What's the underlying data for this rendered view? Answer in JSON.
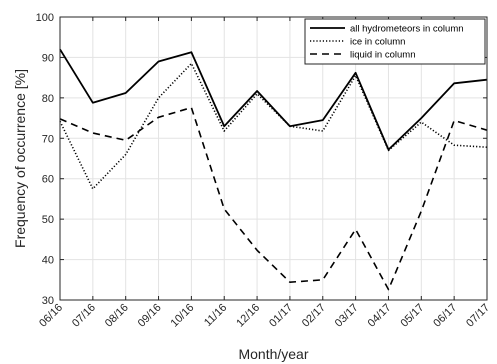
{
  "chart_data": {
    "type": "line",
    "title": "",
    "xlabel": "Month/year",
    "ylabel": "Frequency of occurrence [%]",
    "categories": [
      "06/16",
      "07/16",
      "08/16",
      "09/16",
      "10/16",
      "11/16",
      "12/16",
      "01/17",
      "02/17",
      "03/17",
      "04/17",
      "05/17",
      "06/17",
      "07/17"
    ],
    "ylim": [
      30,
      100
    ],
    "yticks": [
      30,
      40,
      50,
      60,
      70,
      80,
      90,
      100
    ],
    "grid": true,
    "legend_position": "top-right",
    "series": [
      {
        "name": "all hydrometeors in column",
        "style": "solid",
        "color": "#000000",
        "values": [
          92.0,
          78.8,
          81.2,
          89.0,
          91.3,
          73.0,
          81.7,
          73.0,
          74.5,
          86.2,
          67.2,
          75.0,
          83.6,
          84.5
        ]
      },
      {
        "name": "ice in column",
        "style": "dotted",
        "color": "#000000",
        "values": [
          74.2,
          57.5,
          66.0,
          80.0,
          88.5,
          71.8,
          81.0,
          73.0,
          71.8,
          85.5,
          67.0,
          74.0,
          68.3,
          67.8
        ]
      },
      {
        "name": "liquid in column",
        "style": "dashed",
        "color": "#000000",
        "values": [
          74.8,
          71.3,
          69.5,
          75.2,
          77.6,
          52.5,
          42.3,
          34.4,
          35.0,
          47.5,
          32.6,
          52.0,
          74.4,
          72.0
        ]
      }
    ]
  }
}
